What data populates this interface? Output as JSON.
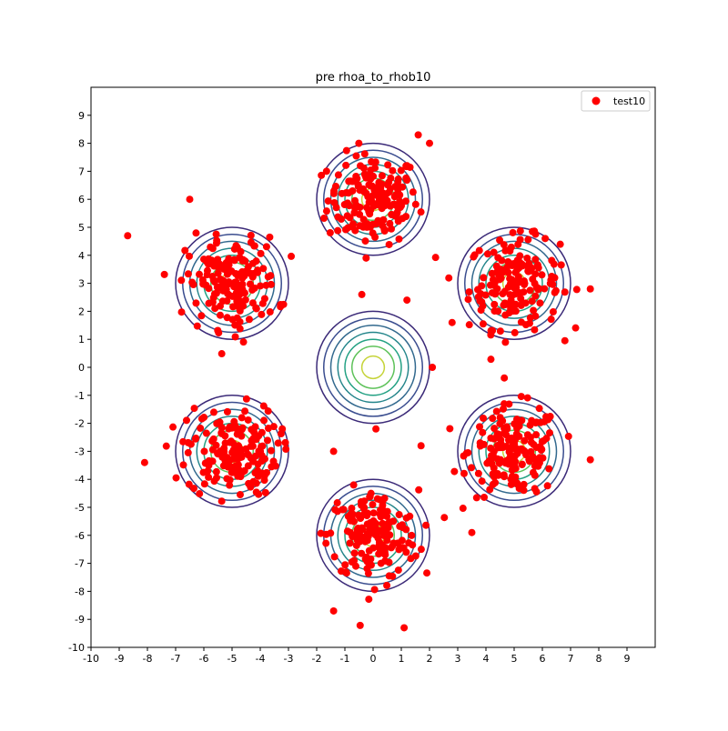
{
  "chart_data": {
    "type": "scatter",
    "title": "pre rhoa_to_rhob10",
    "xlabel": "",
    "ylabel": "",
    "xlim": [
      -10,
      10
    ],
    "ylim": [
      -10,
      10
    ],
    "xticks": [
      "-10",
      "-9",
      "-8",
      "-7",
      "-6",
      "-5",
      "-4",
      "-3",
      "-2",
      "-1",
      "0",
      "1",
      "2",
      "3",
      "4",
      "5",
      "6",
      "7",
      "8",
      "9"
    ],
    "yticks": [
      "-10",
      "-9",
      "-8",
      "-7",
      "-6",
      "-5",
      "-4",
      "-3",
      "-2",
      "-1",
      "0",
      "1",
      "2",
      "3",
      "4",
      "5",
      "6",
      "7",
      "8",
      "9"
    ],
    "grid": false,
    "legend": {
      "placement": "top-right",
      "entries": [
        {
          "label": "test10",
          "color": "#ff0000"
        }
      ]
    },
    "series": [
      {
        "name": "test10",
        "kind": "scatter",
        "color": "#ff0000",
        "mixture": {
          "centers": [
            [
              0,
              6
            ],
            [
              5,
              3
            ],
            [
              5,
              -3
            ],
            [
              0,
              -6
            ],
            [
              -5,
              -3
            ],
            [
              -5,
              3
            ]
          ],
          "std": 0.8,
          "points_per_center": 170
        },
        "outliers": [
          [
            -8.7,
            4.7
          ],
          [
            -8.1,
            -3.4
          ],
          [
            1.1,
            -9.3
          ],
          [
            1.6,
            8.3
          ],
          [
            2.0,
            8.0
          ],
          [
            7.7,
            2.8
          ],
          [
            7.7,
            -3.3
          ],
          [
            -6.5,
            6.0
          ],
          [
            6.1,
            4.6
          ],
          [
            -0.4,
            2.6
          ],
          [
            1.2,
            2.4
          ],
          [
            2.1,
            0.0
          ],
          [
            0.1,
            -2.2
          ],
          [
            1.7,
            -2.8
          ],
          [
            -1.4,
            -8.7
          ],
          [
            3.5,
            -5.9
          ],
          [
            -1.4,
            -3.0
          ],
          [
            2.8,
            1.6
          ]
        ]
      },
      {
        "name": "",
        "kind": "contour",
        "density_centers": [
          [
            0,
            0
          ],
          [
            0,
            6
          ],
          [
            5,
            3
          ],
          [
            5,
            -3
          ],
          [
            0,
            -6
          ],
          [
            -5,
            -3
          ],
          [
            -5,
            3
          ]
        ],
        "levels_radii": [
          2.0,
          1.75,
          1.5,
          1.25,
          1.0,
          0.75,
          0.4
        ],
        "colors": [
          "#3b2a78",
          "#3a4d8f",
          "#32698e",
          "#23858a",
          "#23a183",
          "#5ec25a",
          "#c6d43a"
        ]
      }
    ]
  }
}
